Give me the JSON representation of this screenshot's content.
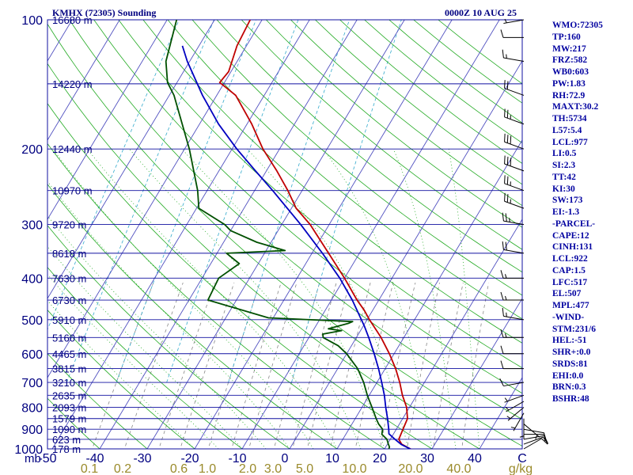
{
  "header": {
    "station_title": "KMHX (72305) Sounding",
    "time": "0000Z 10 AUG 25"
  },
  "indices": [
    "WMO:72305",
    "TP:160",
    "MW:217",
    "FRZ:582",
    "WB0:603",
    "PW:1.83",
    "RH:72.9",
    "MAXT:30.2",
    "TH:5734",
    "L57:5.4",
    "LCL:977",
    "LI:0.5",
    "SI:2.3",
    "TT:42",
    "KI:30",
    "SW:173",
    "EI:-1.3",
    "-PARCEL-",
    "CAPE:12",
    "CINH:131",
    "LCL:922",
    "CAP:1.5",
    "LFC:517",
    "EL:507",
    "MPL:477",
    "-WIND-",
    "STM:231/6",
    "HEL:-51",
    "SHR+:0.0",
    "SRDS:81",
    "EHI:0.0",
    "BRN:0.3",
    "BSHR:48"
  ],
  "colors": {
    "isobar": "#1010a0",
    "isotherm": "#5050c0",
    "dry_adiabat": "#22aa22",
    "moist_adiabat": "#22aa22",
    "mixing_ratio": "#888888",
    "saturation_mix": "#33aacc",
    "temperature": "#c00000",
    "dewpoint": "#005000",
    "parcel": "#0000c0",
    "text": "#000080"
  },
  "chart_data": {
    "type": "line",
    "title": "KMHX (72305) Sounding 0000Z 10 AUG 25",
    "xlabel": "",
    "ylabel": "mb",
    "xlim": [
      -50,
      50
    ],
    "ylim": [
      1000,
      100
    ],
    "y_scale": "log",
    "grid": true,
    "pressure_levels": [
      100,
      200,
      300,
      400,
      500,
      600,
      700,
      800,
      900,
      1000
    ],
    "temperature_ticks": [
      "-50",
      "-40",
      "-30",
      "-20",
      "-10",
      "0",
      "10",
      "20",
      "30",
      "40",
      "C"
    ],
    "mixing_ratio_labels": [
      "0.1",
      "0.2",
      "0.6",
      "1.0",
      "2.0",
      "3.0",
      "5.0",
      "10.0",
      "20.0",
      "40.0",
      "g/kg"
    ],
    "height_labels": [
      {
        "p": 100,
        "label": "16680 m"
      },
      {
        "p": 141,
        "label": "14220 m"
      },
      {
        "p": 200,
        "label": "12440 m"
      },
      {
        "p": 250,
        "label": "10970 m"
      },
      {
        "p": 300,
        "label": "9720 m"
      },
      {
        "p": 350,
        "label": "8618 m"
      },
      {
        "p": 400,
        "label": "7630 m"
      },
      {
        "p": 450,
        "label": "6730 m"
      },
      {
        "p": 500,
        "label": "5910 m"
      },
      {
        "p": 550,
        "label": "5160 m"
      },
      {
        "p": 600,
        "label": "4465 m"
      },
      {
        "p": 650,
        "label": "3815 m"
      },
      {
        "p": 700,
        "label": "3210 m"
      },
      {
        "p": 750,
        "label": "2635 m"
      },
      {
        "p": 800,
        "label": "2093 m"
      },
      {
        "p": 850,
        "label": "1579 m"
      },
      {
        "p": 900,
        "label": "1090 m"
      },
      {
        "p": 950,
        "label": "623 m"
      },
      {
        "p": 1000,
        "label": "178 m"
      }
    ],
    "series": [
      {
        "points": [
          [
            1008,
            26.2
          ],
          [
            975,
            23.0
          ],
          [
            950,
            21.8
          ],
          [
            900,
            21.4
          ],
          [
            875,
            21.2
          ],
          [
            850,
            21.0
          ],
          [
            800,
            19.4
          ],
          [
            750,
            17.0
          ],
          [
            700,
            14.8
          ],
          [
            650,
            12.2
          ],
          [
            600,
            9.0
          ],
          [
            550,
            5.2
          ],
          [
            500,
            0.5
          ],
          [
            475,
            -1.8
          ],
          [
            450,
            -4.6
          ],
          [
            400,
            -10.0
          ],
          [
            350,
            -16.5
          ],
          [
            300,
            -24.0
          ],
          [
            275,
            -29.0
          ],
          [
            250,
            -33.0
          ],
          [
            225,
            -37.8
          ],
          [
            200,
            -43.5
          ],
          [
            175,
            -49.0
          ],
          [
            150,
            -56.0
          ],
          [
            140,
            -61.0
          ],
          [
            132,
            -60.5
          ],
          [
            115,
            -62.0
          ],
          [
            100,
            -62.5
          ]
        ]
      },
      {
        "points": [
          [
            1008,
            21.0
          ],
          [
            990,
            20.8
          ],
          [
            975,
            20.2
          ],
          [
            950,
            19.3
          ],
          [
            925,
            17.6
          ],
          [
            900,
            17.1
          ],
          [
            875,
            15.6
          ],
          [
            850,
            14.4
          ],
          [
            800,
            12.1
          ],
          [
            750,
            9.6
          ],
          [
            700,
            7.2
          ],
          [
            650,
            4.2
          ],
          [
            600,
            0.0
          ],
          [
            575,
            -2.8
          ],
          [
            550,
            -7.0
          ],
          [
            540,
            -7.5
          ],
          [
            530,
            -4.0
          ],
          [
            525,
            -7.0
          ],
          [
            510,
            -3.5
          ],
          [
            505,
            -2.8
          ],
          [
            495,
            -21.0
          ],
          [
            450,
            -36.0
          ],
          [
            400,
            -36.5
          ],
          [
            370,
            -34.0
          ],
          [
            350,
            -38.0
          ],
          [
            345,
            -26.0
          ],
          [
            330,
            -33.0
          ],
          [
            310,
            -40.0
          ],
          [
            300,
            -42.0
          ],
          [
            275,
            -49.5
          ],
          [
            250,
            -52.0
          ],
          [
            200,
            -59.0
          ],
          [
            150,
            -69.0
          ],
          [
            140,
            -72.0
          ],
          [
            125,
            -75.0
          ],
          [
            100,
            -78.0
          ]
        ]
      },
      {
        "points": [
          [
            1008,
            26.2
          ],
          [
            977,
            23.0
          ],
          [
            950,
            21.0
          ],
          [
            922,
            19.0
          ],
          [
            900,
            18.4
          ],
          [
            850,
            16.8
          ],
          [
            800,
            15.0
          ],
          [
            750,
            13.2
          ],
          [
            700,
            11.0
          ],
          [
            650,
            8.6
          ],
          [
            600,
            5.8
          ],
          [
            550,
            2.6
          ],
          [
            517,
            0.2
          ],
          [
            500,
            -1.2
          ],
          [
            450,
            -5.6
          ],
          [
            400,
            -11.0
          ],
          [
            350,
            -17.8
          ],
          [
            300,
            -26.0
          ],
          [
            250,
            -36.2
          ],
          [
            225,
            -42.3
          ],
          [
            200,
            -49.0
          ],
          [
            175,
            -56.0
          ],
          [
            150,
            -63.0
          ],
          [
            125,
            -70.5
          ],
          [
            115,
            -73.5
          ]
        ]
      }
    ],
    "wind_barbs": [
      {
        "p": 1000,
        "dir": 60,
        "spd": 10
      },
      {
        "p": 975,
        "dir": 70,
        "spd": 10
      },
      {
        "p": 950,
        "dir": 80,
        "spd": 10
      },
      {
        "p": 925,
        "dir": 90,
        "spd": 10
      },
      {
        "p": 900,
        "dir": 100,
        "spd": 10
      },
      {
        "p": 875,
        "dir": 130,
        "spd": 5
      },
      {
        "p": 850,
        "dir": 180,
        "spd": 5
      },
      {
        "p": 825,
        "dir": 210,
        "spd": 5
      },
      {
        "p": 800,
        "dir": 230,
        "spd": 5
      },
      {
        "p": 775,
        "dir": 240,
        "spd": 5
      },
      {
        "p": 750,
        "dir": 250,
        "spd": 5
      },
      {
        "p": 700,
        "dir": 260,
        "spd": 10
      },
      {
        "p": 650,
        "dir": 270,
        "spd": 10
      },
      {
        "p": 600,
        "dir": 270,
        "spd": 10
      },
      {
        "p": 550,
        "dir": 270,
        "spd": 15
      },
      {
        "p": 500,
        "dir": 280,
        "spd": 15
      },
      {
        "p": 450,
        "dir": 270,
        "spd": 15
      },
      {
        "p": 400,
        "dir": 270,
        "spd": 15
      },
      {
        "p": 350,
        "dir": 280,
        "spd": 20
      },
      {
        "p": 300,
        "dir": 280,
        "spd": 25
      },
      {
        "p": 275,
        "dir": 290,
        "spd": 25
      },
      {
        "p": 250,
        "dir": 290,
        "spd": 25
      },
      {
        "p": 225,
        "dir": 290,
        "spd": 30
      },
      {
        "p": 200,
        "dir": 290,
        "spd": 30
      },
      {
        "p": 175,
        "dir": 290,
        "spd": 25
      },
      {
        "p": 150,
        "dir": 290,
        "spd": 20
      },
      {
        "p": 125,
        "dir": 280,
        "spd": 15
      },
      {
        "p": 110,
        "dir": 270,
        "spd": 10
      },
      {
        "p": 100,
        "dir": 260,
        "spd": 5
      }
    ]
  }
}
